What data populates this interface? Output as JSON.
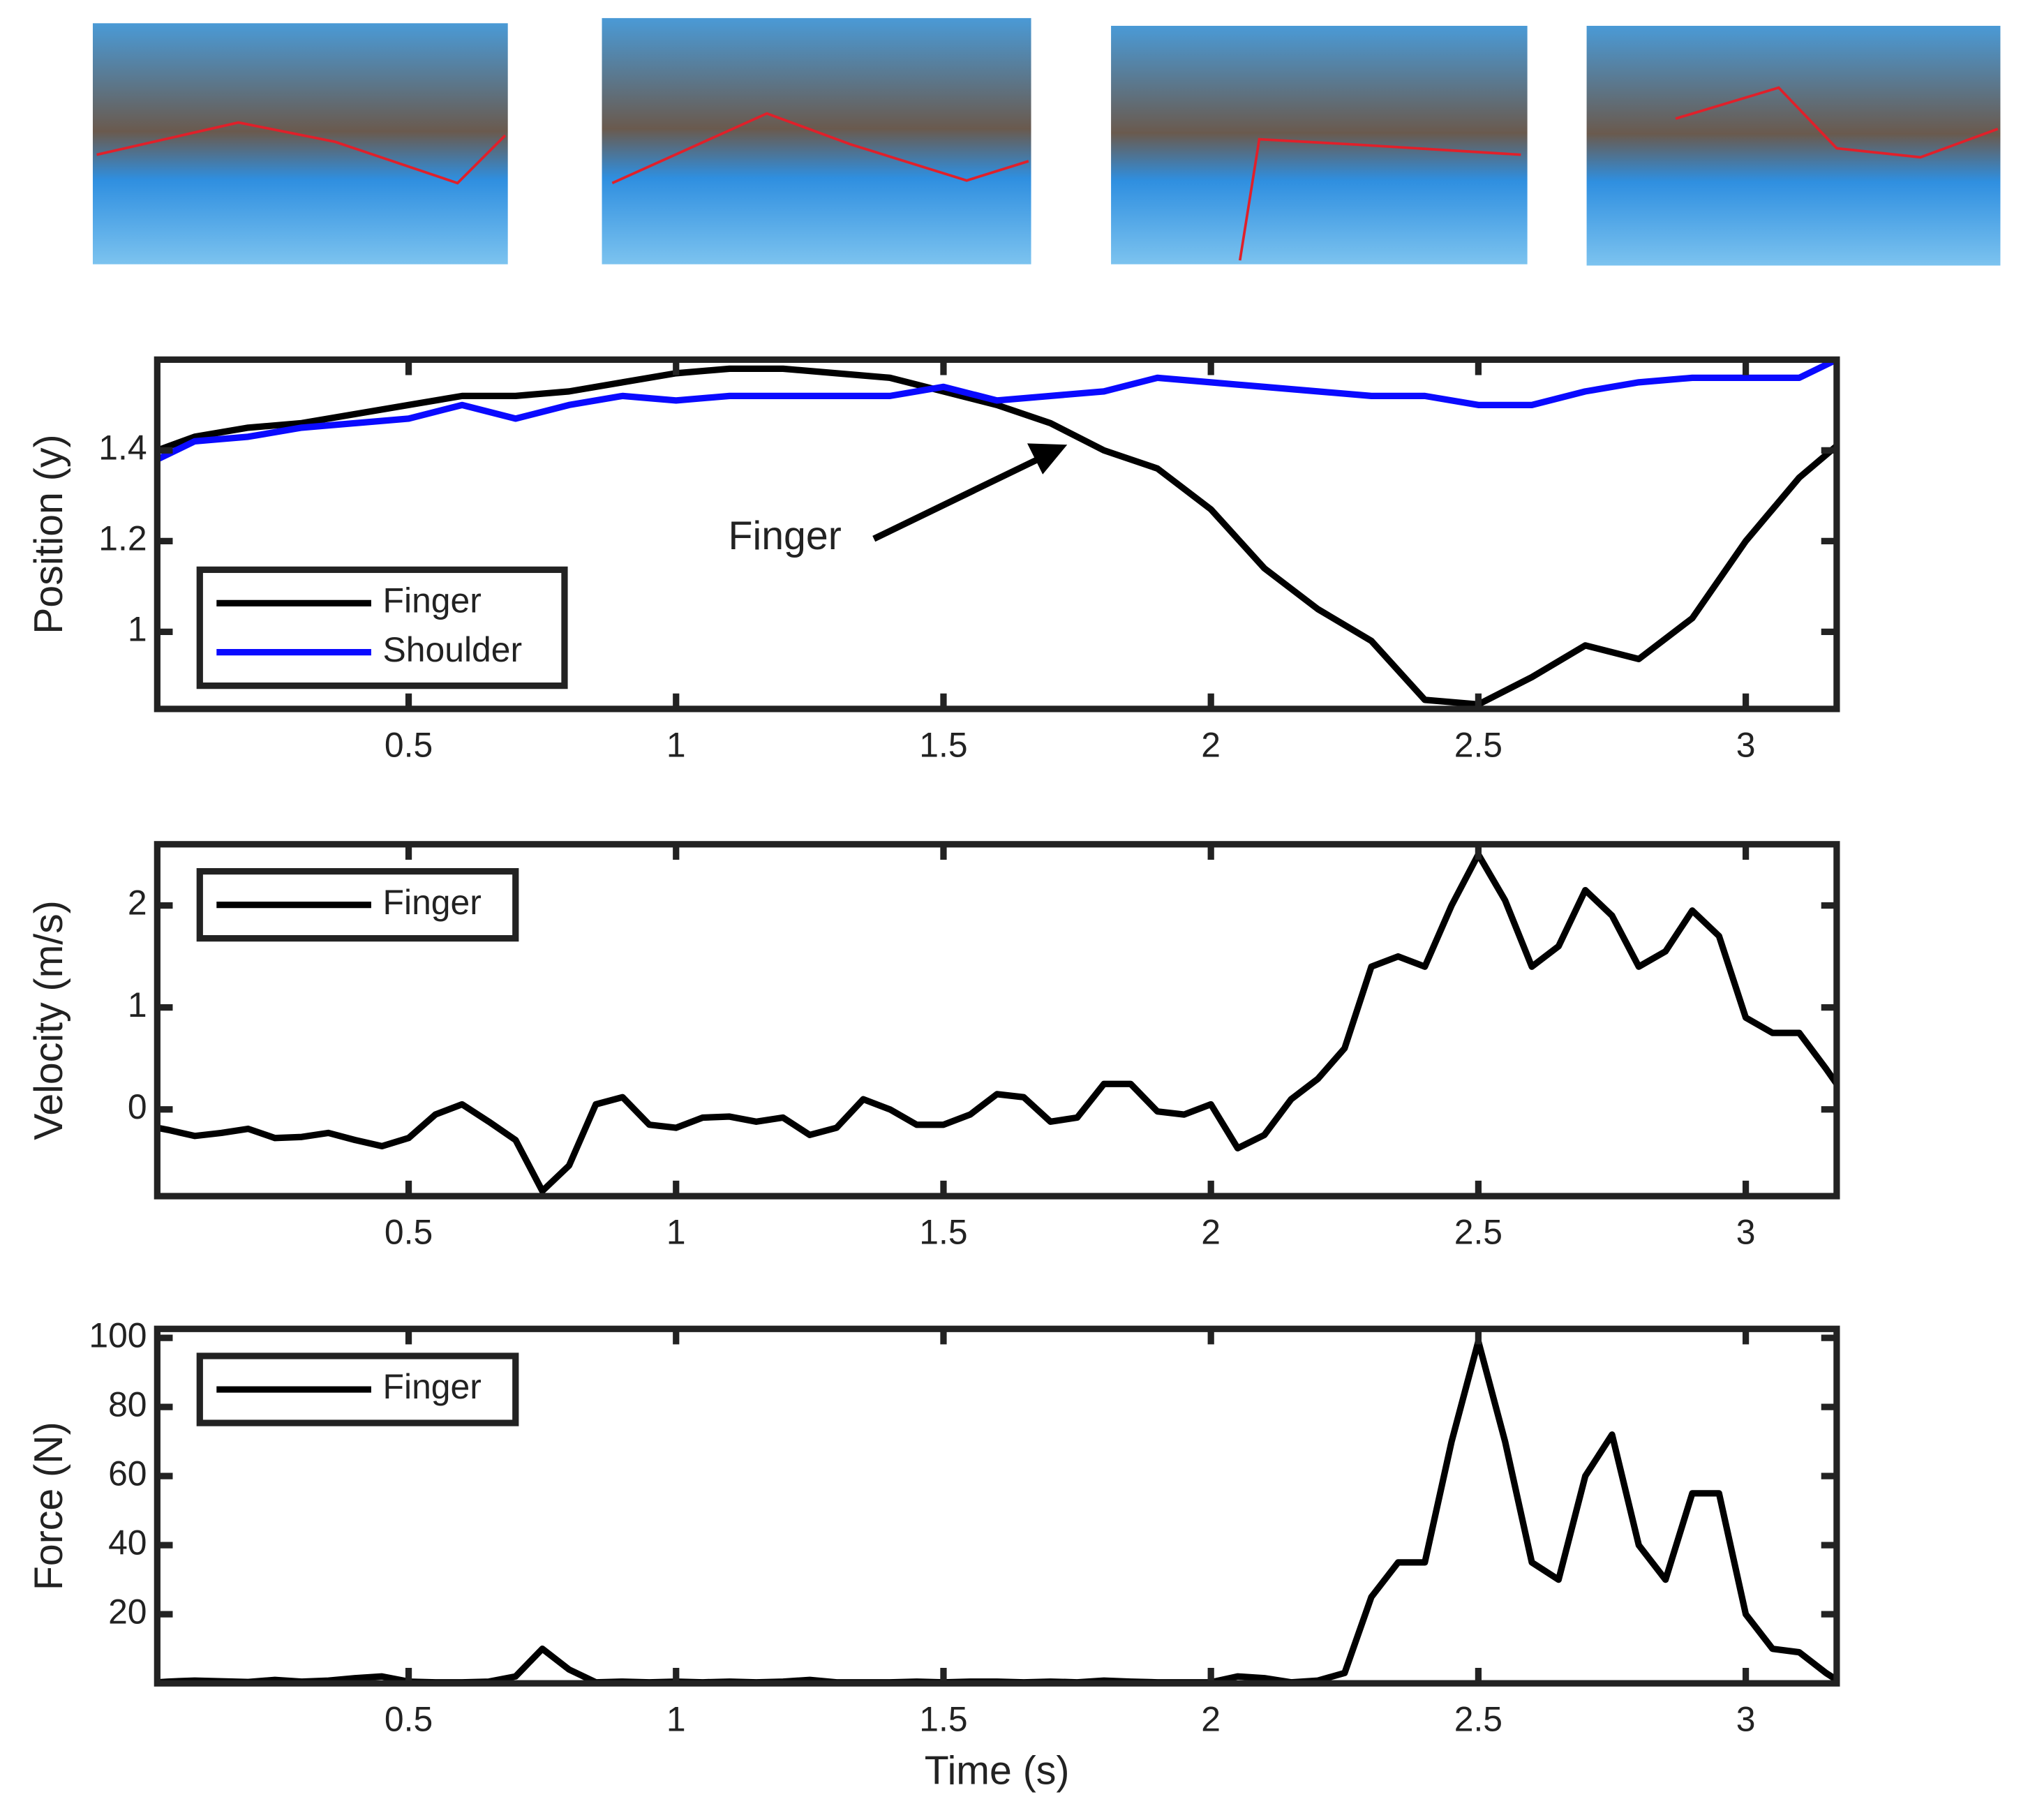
{
  "chart_data": [
    {
      "type": "line",
      "ylabel": "Position (y)",
      "xlim": [
        0.03,
        3.17
      ],
      "xticks": [
        0.5,
        1,
        1.5,
        2,
        2.5,
        3
      ],
      "ylim": [
        0.83,
        1.6
      ],
      "yticks": [
        1,
        1.2,
        1.4
      ],
      "legend": "lower left",
      "annotation": "Finger",
      "x": [
        0.03,
        0.1,
        0.2,
        0.3,
        0.4,
        0.5,
        0.6,
        0.7,
        0.8,
        0.9,
        1.0,
        1.1,
        1.2,
        1.3,
        1.4,
        1.5,
        1.6,
        1.7,
        1.8,
        1.9,
        2.0,
        2.1,
        2.2,
        2.3,
        2.4,
        2.5,
        2.6,
        2.7,
        2.8,
        2.9,
        3.0,
        3.1,
        3.17
      ],
      "series": [
        {
          "name": "Finger",
          "color": "#000000",
          "values": [
            1.4,
            1.43,
            1.45,
            1.46,
            1.48,
            1.5,
            1.52,
            1.52,
            1.53,
            1.55,
            1.57,
            1.58,
            1.58,
            1.57,
            1.56,
            1.53,
            1.5,
            1.46,
            1.4,
            1.36,
            1.27,
            1.14,
            1.05,
            0.98,
            0.85,
            0.84,
            0.9,
            0.97,
            0.94,
            1.03,
            1.2,
            1.34,
            1.41
          ]
        },
        {
          "name": "Shoulder",
          "color": "#0a0aff",
          "values": [
            1.38,
            1.42,
            1.43,
            1.45,
            1.46,
            1.47,
            1.5,
            1.47,
            1.5,
            1.52,
            1.51,
            1.52,
            1.52,
            1.52,
            1.52,
            1.54,
            1.51,
            1.52,
            1.53,
            1.56,
            1.55,
            1.54,
            1.53,
            1.52,
            1.52,
            1.5,
            1.5,
            1.53,
            1.55,
            1.56,
            1.56,
            1.56,
            1.6
          ]
        }
      ]
    },
    {
      "type": "line",
      "ylabel": "Velocity (m/s)",
      "xlim": [
        0.03,
        3.17
      ],
      "xticks": [
        0.5,
        1,
        1.5,
        2,
        2.5,
        3
      ],
      "ylim": [
        -0.85,
        2.6
      ],
      "yticks": [
        0,
        1,
        2
      ],
      "legend": "upper left",
      "x": [
        0.03,
        0.05,
        0.1,
        0.15,
        0.2,
        0.25,
        0.3,
        0.35,
        0.4,
        0.45,
        0.5,
        0.55,
        0.6,
        0.65,
        0.7,
        0.75,
        0.8,
        0.85,
        0.9,
        0.95,
        1.0,
        1.05,
        1.1,
        1.15,
        1.2,
        1.25,
        1.3,
        1.35,
        1.4,
        1.45,
        1.5,
        1.55,
        1.6,
        1.65,
        1.7,
        1.75,
        1.8,
        1.85,
        1.9,
        1.95,
        2.0,
        2.05,
        2.1,
        2.15,
        2.2,
        2.25,
        2.3,
        2.35,
        2.4,
        2.45,
        2.5,
        2.55,
        2.6,
        2.65,
        2.7,
        2.75,
        2.8,
        2.85,
        2.9,
        2.95,
        3.0,
        3.05,
        3.1,
        3.15,
        3.17
      ],
      "series": [
        {
          "name": "Finger",
          "color": "#000000",
          "values": [
            -0.18,
            -0.2,
            -0.26,
            -0.23,
            -0.19,
            -0.28,
            -0.27,
            -0.23,
            -0.3,
            -0.36,
            -0.28,
            -0.05,
            0.05,
            -0.12,
            -0.3,
            -0.8,
            -0.55,
            0.05,
            0.12,
            -0.15,
            -0.18,
            -0.08,
            -0.07,
            -0.12,
            -0.08,
            -0.25,
            -0.18,
            0.1,
            0.0,
            -0.15,
            -0.15,
            -0.05,
            0.15,
            0.12,
            -0.12,
            -0.08,
            0.25,
            0.25,
            -0.02,
            -0.05,
            0.05,
            -0.38,
            -0.25,
            0.1,
            0.3,
            0.6,
            1.4,
            1.5,
            1.4,
            2.0,
            2.5,
            2.05,
            1.4,
            1.6,
            2.15,
            1.9,
            1.4,
            1.55,
            1.95,
            1.7,
            0.9,
            0.75,
            0.75,
            0.4,
            0.25
          ]
        }
      ]
    },
    {
      "type": "line",
      "ylabel": "Force (N)",
      "xlabel": "Time (s)",
      "xlim": [
        0.03,
        3.17
      ],
      "xticks": [
        0.5,
        1,
        1.5,
        2,
        2.5,
        3
      ],
      "ylim": [
        0,
        102.6
      ],
      "yticks": [
        20,
        40,
        60,
        80,
        100
      ],
      "legend": "upper left",
      "x": [
        0.03,
        0.05,
        0.1,
        0.15,
        0.2,
        0.25,
        0.3,
        0.35,
        0.4,
        0.45,
        0.5,
        0.55,
        0.6,
        0.65,
        0.7,
        0.75,
        0.8,
        0.85,
        0.9,
        0.95,
        1.0,
        1.05,
        1.1,
        1.15,
        1.2,
        1.25,
        1.3,
        1.35,
        1.4,
        1.45,
        1.5,
        1.55,
        1.6,
        1.65,
        1.7,
        1.75,
        1.8,
        1.85,
        1.9,
        1.95,
        2.0,
        2.05,
        2.1,
        2.15,
        2.2,
        2.25,
        2.3,
        2.35,
        2.4,
        2.45,
        2.5,
        2.55,
        2.6,
        2.65,
        2.7,
        2.75,
        2.8,
        2.85,
        2.9,
        2.95,
        3.0,
        3.05,
        3.1,
        3.15,
        3.17
      ],
      "series": [
        {
          "name": "Finger",
          "color": "#000000",
          "values": [
            0.3,
            0.5,
            0.8,
            0.6,
            0.4,
            1,
            0.5,
            0.8,
            1.5,
            2,
            0.5,
            0.3,
            0.3,
            0.5,
            2,
            10,
            4,
            0.3,
            0.5,
            0.3,
            0.5,
            0.3,
            0.5,
            0.3,
            0.5,
            1,
            0.3,
            0.3,
            0.3,
            0.5,
            0.3,
            0.5,
            0.5,
            0.3,
            0.5,
            0.3,
            0.8,
            0.5,
            0.3,
            0.3,
            0.3,
            2,
            1.5,
            0.3,
            0.8,
            3,
            25,
            35,
            35,
            70,
            99,
            70,
            35,
            30,
            60,
            72,
            40,
            30,
            55,
            55,
            20,
            10,
            9,
            3,
            1
          ]
        }
      ]
    }
  ]
}
